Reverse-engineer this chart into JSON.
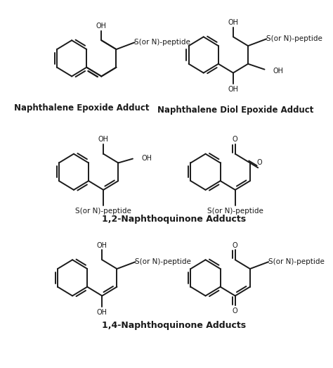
{
  "background_color": "#ffffff",
  "text_color": "#1a1a1a",
  "line_color": "#1a1a1a",
  "line_width": 1.4,
  "labels": {
    "naphEpoxide": "Naphthalene Epoxide Adduct",
    "naphDiol": "Naphthalene Diol Epoxide Adduct",
    "naph12": "1,2-Naphthoquinone Adducts",
    "naph14": "1,4-Naphthoquinone Adducts"
  },
  "peptide_label": "S(or N)-peptide",
  "oh_label": "OH",
  "o_label": "O",
  "label_fontsize": 8.5,
  "bold_fontsize": 8.5,
  "substituent_fontsize": 7.0,
  "group_fontsize": 7.5
}
